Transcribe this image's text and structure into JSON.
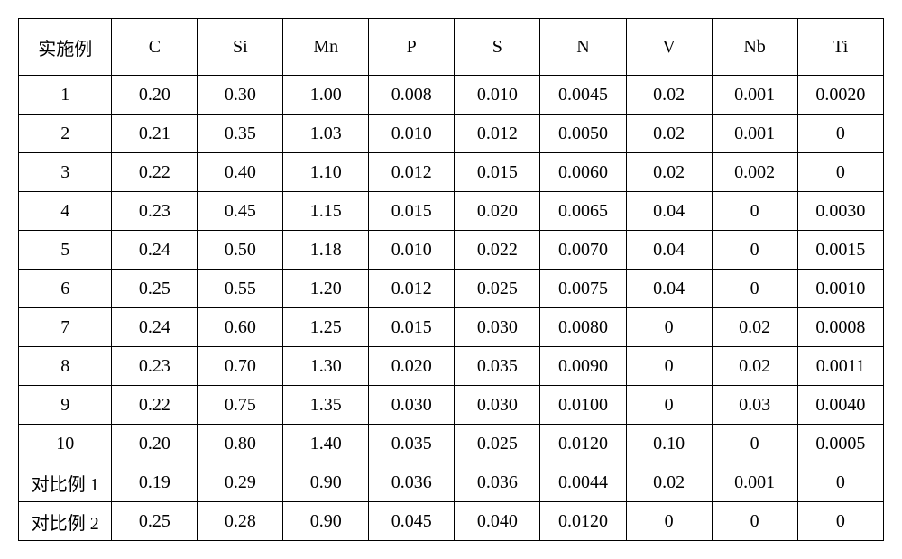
{
  "table": {
    "columns": [
      "实施例",
      "C",
      "Si",
      "Mn",
      "P",
      "S",
      "N",
      "V",
      "Nb",
      "Ti"
    ],
    "rows": [
      [
        "1",
        "0.20",
        "0.30",
        "1.00",
        "0.008",
        "0.010",
        "0.0045",
        "0.02",
        "0.001",
        "0.0020"
      ],
      [
        "2",
        "0.21",
        "0.35",
        "1.03",
        "0.010",
        "0.012",
        "0.0050",
        "0.02",
        "0.001",
        "0"
      ],
      [
        "3",
        "0.22",
        "0.40",
        "1.10",
        "0.012",
        "0.015",
        "0.0060",
        "0.02",
        "0.002",
        "0"
      ],
      [
        "4",
        "0.23",
        "0.45",
        "1.15",
        "0.015",
        "0.020",
        "0.0065",
        "0.04",
        "0",
        "0.0030"
      ],
      [
        "5",
        "0.24",
        "0.50",
        "1.18",
        "0.010",
        "0.022",
        "0.0070",
        "0.04",
        "0",
        "0.0015"
      ],
      [
        "6",
        "0.25",
        "0.55",
        "1.20",
        "0.012",
        "0.025",
        "0.0075",
        "0.04",
        "0",
        "0.0010"
      ],
      [
        "7",
        "0.24",
        "0.60",
        "1.25",
        "0.015",
        "0.030",
        "0.0080",
        "0",
        "0.02",
        "0.0008"
      ],
      [
        "8",
        "0.23",
        "0.70",
        "1.30",
        "0.020",
        "0.035",
        "0.0090",
        "0",
        "0.02",
        "0.0011"
      ],
      [
        "9",
        "0.22",
        "0.75",
        "1.35",
        "0.030",
        "0.030",
        "0.0100",
        "0",
        "0.03",
        "0.0040"
      ],
      [
        "10",
        "0.20",
        "0.80",
        "1.40",
        "0.035",
        "0.025",
        "0.0120",
        "0.10",
        "0",
        "0.0005"
      ],
      [
        "对比例 1",
        "0.19",
        "0.29",
        "0.90",
        "0.036",
        "0.036",
        "0.0044",
        "0.02",
        "0.001",
        "0"
      ],
      [
        "对比例 2",
        "0.25",
        "0.28",
        "0.90",
        "0.045",
        "0.040",
        "0.0120",
        "0",
        "0",
        "0"
      ]
    ],
    "column_widths_class": [
      "col-label",
      "col-data",
      "col-data",
      "col-data",
      "col-data",
      "col-data",
      "col-data",
      "col-data",
      "col-data",
      "col-data"
    ],
    "border_color": "#000000",
    "background_color": "#ffffff",
    "text_color": "#000000",
    "header_fontsize": 20,
    "cell_fontsize": 20,
    "header_row_height": 62,
    "data_row_height": 42
  }
}
